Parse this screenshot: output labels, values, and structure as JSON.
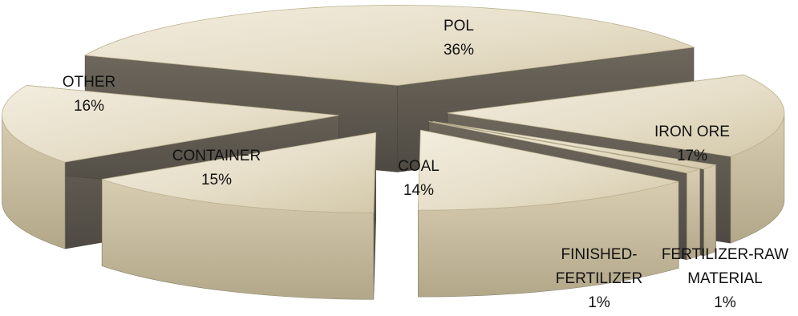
{
  "chart_data": {
    "type": "pie",
    "style": "3d-exploded",
    "slices": [
      {
        "label": "POL",
        "percent": "36%",
        "value": 36
      },
      {
        "label": "IRON ORE",
        "percent": "17%",
        "value": 17
      },
      {
        "label": "FERTILIZER-RAW MATERIAL",
        "label_lines": [
          "FERTILIZER-RAW",
          "MATERIAL"
        ],
        "percent": "1%",
        "value": 1
      },
      {
        "label": "FINISHED-FERTILIZER",
        "label_lines": [
          "FINISHED-",
          "FERTILIZER"
        ],
        "percent": "1%",
        "value": 1
      },
      {
        "label": "COAL",
        "percent": "14%",
        "value": 14
      },
      {
        "label": "CONTAINER",
        "percent": "15%",
        "value": 15
      },
      {
        "label": "OTHER",
        "percent": "16%",
        "value": 16
      }
    ]
  },
  "colors": {
    "top_light": "#eae4d4",
    "top_mid": "#d8ceb2",
    "top_dark": "#bfb491",
    "wall_dark": "#5e584e",
    "wall_mid": "#746d61",
    "face_light": "#ddd3b8",
    "face_dark": "#a89d80"
  }
}
